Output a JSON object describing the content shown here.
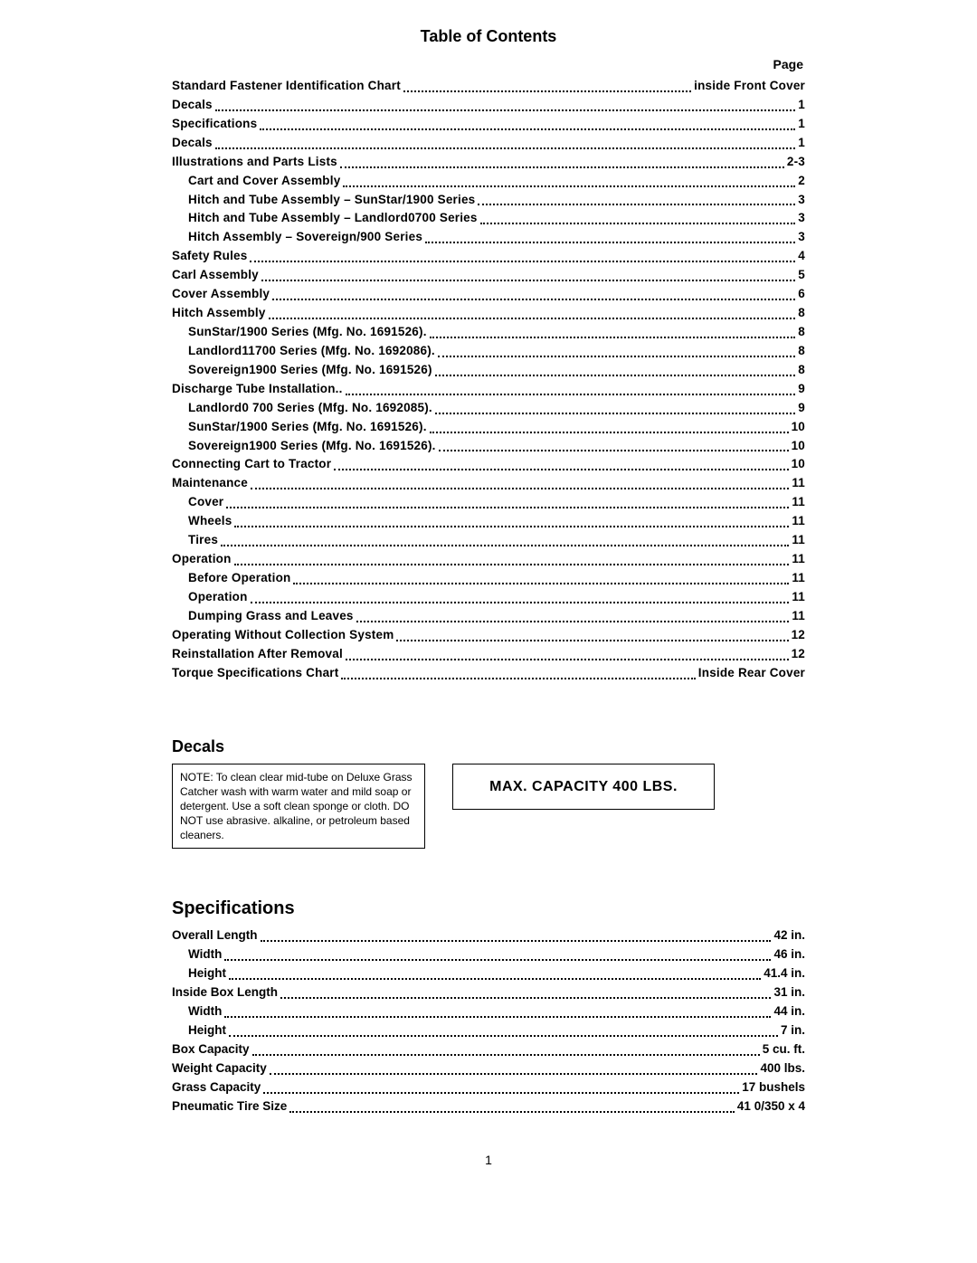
{
  "title": "Table of Contents",
  "page_label": "Page",
  "toc": [
    {
      "label": "Standard Fastener Identification Chart",
      "page": "inside Front Cover",
      "indent": 0
    },
    {
      "label": "Decals",
      "page": "1",
      "indent": 0
    },
    {
      "label": "Specifications",
      "page": "1",
      "indent": 0
    },
    {
      "label": "Decals",
      "page": "1",
      "indent": 0
    },
    {
      "label": "Illustrations and Parts Lists",
      "page": "2-3",
      "indent": 0
    },
    {
      "label": "Cart and Cover Assembly",
      "page": "2",
      "indent": 1
    },
    {
      "label": "Hitch and Tube Assembly – SunStar/1900 Series",
      "page": "3",
      "indent": 1
    },
    {
      "label": "Hitch and Tube Assembly – Landlord0700 Series",
      "page": "3",
      "indent": 1
    },
    {
      "label": "Hitch Assembly – Sovereign/900 Series",
      "page": "3",
      "indent": 1
    },
    {
      "label": "Safety Rules",
      "page": "4",
      "indent": 0
    },
    {
      "label": "Carl Assembly",
      "page": "5",
      "indent": 0
    },
    {
      "label": "Cover Assembly",
      "page": "6",
      "indent": 0
    },
    {
      "label": "Hitch Assembly",
      "page": "8",
      "indent": 0
    },
    {
      "label": "SunStar/1900 Series (Mfg. No. 1691526).",
      "page": "8",
      "indent": 1
    },
    {
      "label": "Landlord11700 Series (Mfg. No. 1692086).",
      "page": "8",
      "indent": 1
    },
    {
      "label": "Sovereign1900 Series (Mfg. No. 1691526)",
      "page": "8",
      "indent": 1
    },
    {
      "label": "Discharge Tube Installation..",
      "page": "9",
      "indent": 0
    },
    {
      "label": "Landlord0 700 Series (Mfg. No. 1692085).",
      "page": "9",
      "indent": 1
    },
    {
      "label": "SunStar/1900 Series (Mfg. No. 1691526).",
      "page": "10",
      "indent": 1
    },
    {
      "label": "Sovereign1900 Series (Mfg. No. 1691526).",
      "page": "10",
      "indent": 1
    },
    {
      "label": "Connecting Cart to Tractor",
      "page": "10",
      "indent": 0
    },
    {
      "label": "Maintenance",
      "page": "11",
      "indent": 0
    },
    {
      "label": "Cover",
      "page": "11",
      "indent": 1
    },
    {
      "label": "Wheels",
      "page": "11",
      "indent": 1
    },
    {
      "label": "Tires",
      "page": "11",
      "indent": 1
    },
    {
      "label": "Operation",
      "page": "11",
      "indent": 0
    },
    {
      "label": "Before Operation",
      "page": "11",
      "indent": 1
    },
    {
      "label": "Operation",
      "page": "11",
      "indent": 1
    },
    {
      "label": "Dumping Grass and Leaves",
      "page": "11",
      "indent": 1
    },
    {
      "label": "Operating Without Collection System",
      "page": "12",
      "indent": 0
    },
    {
      "label": "Reinstallation After Removal",
      "page": "12",
      "indent": 0
    },
    {
      "label": "Torque Specifications Chart",
      "page": "Inside Rear Cover",
      "indent": 0
    }
  ],
  "decals": {
    "heading": "Decals",
    "note": "NOTE: To clean clear mid-tube on Deluxe Grass Catcher wash with warm water and mild soap or detergent. Use a soft clean sponge or cloth. DO NOT use abrasive. alkaline, or petroleum based cleaners.",
    "capacity": "MAX. CAPACITY 400 LBS."
  },
  "specs": {
    "heading": "Specifications",
    "rows": [
      {
        "label": "Overall Length",
        "value": "42 in.",
        "indent": 0
      },
      {
        "label": "Width",
        "value": "46 in.",
        "indent": 1
      },
      {
        "label": "Height",
        "value": "41.4 in.",
        "indent": 1
      },
      {
        "label": "Inside Box Length",
        "value": "31 in.",
        "indent": 0
      },
      {
        "label": "Width",
        "value": "44 in.",
        "indent": 1
      },
      {
        "label": "Height",
        "value": "7 in.",
        "indent": 1
      },
      {
        "label": "Box Capacity",
        "value": "5 cu. ft.",
        "indent": 0
      },
      {
        "label": "Weight Capacity",
        "value": "400 lbs.",
        "indent": 0
      },
      {
        "label": "Grass Capacity",
        "value": "17 bushels",
        "indent": 0
      },
      {
        "label": "Pneumatic Tire Size",
        "value": "41 0/350 x 4",
        "indent": 0
      }
    ]
  },
  "page_number": "1"
}
